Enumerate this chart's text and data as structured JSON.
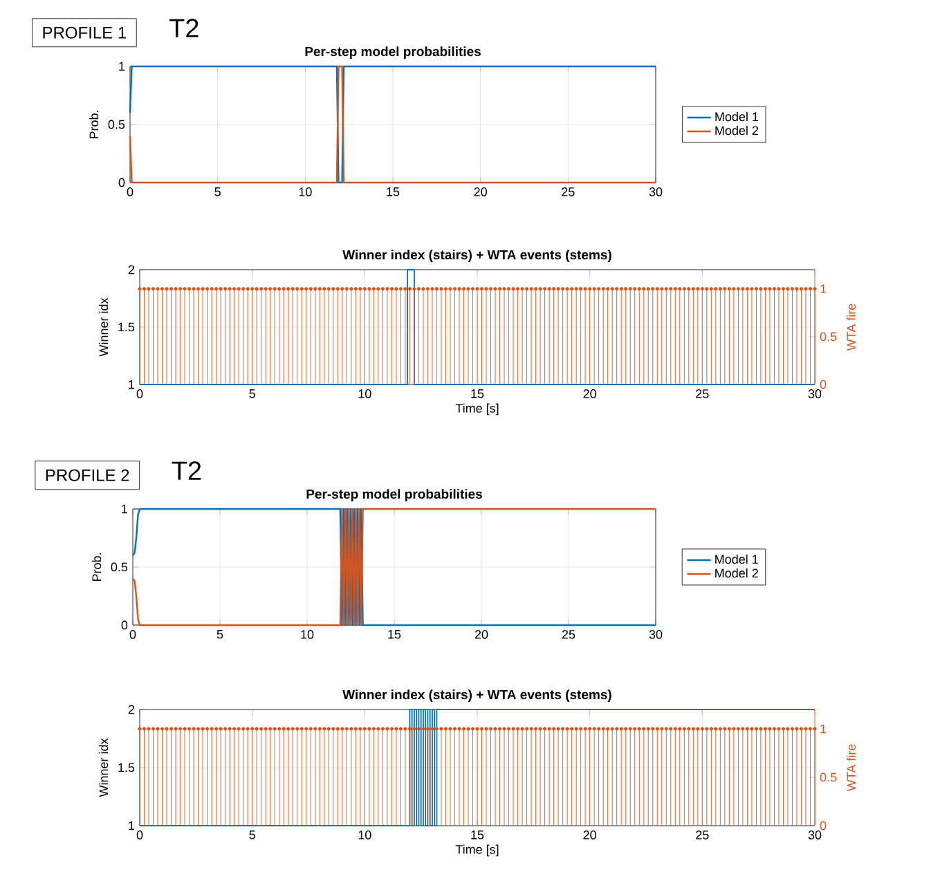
{
  "chart_data": [
    {
      "type": "line",
      "title": "Per-step model probabilities",
      "ylabel": "Prob.",
      "annotations": [
        "PROFILE 1",
        "T2"
      ],
      "xlim": [
        0,
        30
      ],
      "xticks": [
        0,
        5,
        10,
        15,
        20,
        25,
        30
      ],
      "ylim": [
        0,
        1
      ],
      "yticks": [
        0,
        0.5,
        1
      ],
      "grid": true,
      "legend": "right",
      "series": [
        {
          "name": "Model 1",
          "color": "#0072bd",
          "x": [
            0,
            0.1,
            11.8,
            11.9,
            12.1,
            12.2,
            30
          ],
          "values": [
            0.6,
            1,
            1,
            0,
            0,
            1,
            1
          ]
        },
        {
          "name": "Model 2",
          "color": "#d95319",
          "x": [
            0,
            0.1,
            11.8,
            11.9,
            12.1,
            12.2,
            30
          ],
          "values": [
            0.4,
            0,
            0,
            1,
            1,
            0,
            0
          ]
        }
      ]
    },
    {
      "type": "step",
      "title": "Winner index (stairs) + WTA events (stems)",
      "xlabel": "Time [s]",
      "ylabel": "Winner idx",
      "y2label": "WTA fire",
      "xlim": [
        0,
        30
      ],
      "xticks": [
        0,
        5,
        10,
        15,
        20,
        25,
        30
      ],
      "ylim": [
        1,
        2
      ],
      "yticks": [
        1,
        1.5,
        2
      ],
      "y2lim": [
        0,
        1.2
      ],
      "y2ticks": [
        0,
        0.5,
        1
      ],
      "grid": true,
      "series": [
        {
          "type": "step",
          "color": "#0072bd",
          "x": [
            0,
            11.9,
            12.2,
            30
          ],
          "values": [
            1,
            2,
            1,
            1
          ]
        },
        {
          "type": "lollipop",
          "axis": "y2",
          "marker": "circle",
          "color": "#d95319",
          "x": [
            0,
            0.2,
            0.4,
            0.6,
            0.8,
            1,
            1.2,
            1.4,
            1.6,
            1.8,
            2,
            2.2,
            2.4,
            2.6,
            2.8,
            3,
            3.2,
            3.4,
            3.6,
            3.8,
            4,
            4.2,
            4.4,
            4.6,
            4.8,
            5,
            5.2,
            5.4,
            5.6,
            5.8,
            6,
            6.2,
            6.4,
            6.6,
            6.8,
            7,
            7.2,
            7.4,
            7.6,
            7.8,
            8,
            8.2,
            8.4,
            8.6,
            8.8,
            9,
            9.2,
            9.4,
            9.6,
            9.8,
            10,
            10.2,
            10.4,
            10.6,
            10.8,
            11,
            11.2,
            11.4,
            11.6,
            11.8,
            12,
            12.2,
            12.4,
            12.6,
            12.8,
            13,
            13.2,
            13.4,
            13.6,
            13.8,
            14,
            14.2,
            14.4,
            14.6,
            14.8,
            15,
            15.2,
            15.4,
            15.6,
            15.8,
            16,
            16.2,
            16.4,
            16.6,
            16.8,
            17,
            17.2,
            17.4,
            17.6,
            17.8,
            18,
            18.2,
            18.4,
            18.6,
            18.8,
            19,
            19.2,
            19.4,
            19.6,
            19.8,
            20,
            20.2,
            20.4,
            20.6,
            20.8,
            21,
            21.2,
            21.4,
            21.6,
            21.8,
            22,
            22.2,
            22.4,
            22.6,
            22.8,
            23,
            23.2,
            23.4,
            23.6,
            23.8,
            24,
            24.2,
            24.4,
            24.6,
            24.8,
            25,
            25.2,
            25.4,
            25.6,
            25.8,
            26,
            26.2,
            26.4,
            26.6,
            26.8,
            27,
            27.2,
            27.4,
            27.6,
            27.8,
            28,
            28.2,
            28.4,
            28.6,
            28.8,
            29,
            29.2,
            29.4,
            29.6,
            29.8,
            30
          ],
          "values": [
            1,
            1,
            1,
            1,
            1,
            1,
            1,
            1,
            1,
            1,
            1,
            1,
            1,
            1,
            1,
            1,
            1,
            1,
            1,
            1,
            1,
            1,
            1,
            1,
            1,
            1,
            1,
            1,
            1,
            1,
            1,
            1,
            1,
            1,
            1,
            1,
            1,
            1,
            1,
            1,
            1,
            1,
            1,
            1,
            1,
            1,
            1,
            1,
            1,
            1,
            1,
            1,
            1,
            1,
            1,
            1,
            1,
            1,
            1,
            1,
            1,
            1,
            1,
            1,
            1,
            1,
            1,
            1,
            1,
            1,
            1,
            1,
            1,
            1,
            1,
            1,
            1,
            1,
            1,
            1,
            1,
            1,
            1,
            1,
            1,
            1,
            1,
            1,
            1,
            1,
            1,
            1,
            1,
            1,
            1,
            1,
            1,
            1,
            1,
            1,
            1,
            1,
            1,
            1,
            1,
            1,
            1,
            1,
            1,
            1,
            1,
            1,
            1,
            1,
            1,
            1,
            1,
            1,
            1,
            1,
            1,
            1,
            1,
            1,
            1,
            1,
            1,
            1,
            1,
            1,
            1,
            1,
            1,
            1,
            1,
            1,
            1,
            1,
            1,
            1,
            1,
            1,
            1,
            1,
            1,
            1,
            1,
            1,
            1,
            1,
            1
          ]
        }
      ]
    },
    {
      "type": "line",
      "title": "Per-step model probabilities",
      "ylabel": "Prob.",
      "annotations": [
        "PROFILE 2",
        "T2"
      ],
      "xlim": [
        0,
        30
      ],
      "xticks": [
        0,
        5,
        10,
        15,
        20,
        25,
        30
      ],
      "ylim": [
        0,
        1
      ],
      "yticks": [
        0,
        0.5,
        1
      ],
      "grid": true,
      "legend": "right",
      "series": [
        {
          "name": "Model 1",
          "color": "#0072bd",
          "x": [
            0,
            0.1,
            0.2,
            0.3,
            0.4,
            11.9,
            12,
            12.1,
            12.2,
            12.3,
            12.4,
            12.5,
            12.6,
            12.7,
            12.8,
            12.9,
            13,
            13.1,
            13.2,
            13.3,
            30
          ],
          "values": [
            0.6,
            0.62,
            0.75,
            0.95,
            1,
            1,
            0,
            1,
            0,
            1,
            0,
            1,
            0,
            1,
            0,
            1,
            0,
            1,
            0,
            0,
            0
          ]
        },
        {
          "name": "Model 2",
          "color": "#d95319",
          "x": [
            0,
            0.1,
            0.2,
            0.3,
            0.4,
            11.9,
            12,
            12.1,
            12.2,
            12.3,
            12.4,
            12.5,
            12.6,
            12.7,
            12.8,
            12.9,
            13,
            13.1,
            13.2,
            13.3,
            30
          ],
          "values": [
            0.4,
            0.38,
            0.25,
            0.05,
            0,
            0,
            1,
            0,
            1,
            0,
            1,
            0,
            1,
            0,
            1,
            0,
            1,
            0,
            1,
            1,
            1
          ]
        }
      ]
    },
    {
      "type": "step",
      "title": "Winner index (stairs) + WTA events (stems)",
      "xlabel": "Time [s]",
      "ylabel": "Winner idx",
      "y2label": "WTA fire",
      "xlim": [
        0,
        30
      ],
      "xticks": [
        0,
        5,
        10,
        15,
        20,
        25,
        30
      ],
      "ylim": [
        1,
        2
      ],
      "yticks": [
        1,
        1.5,
        2
      ],
      "y2lim": [
        0,
        1.2
      ],
      "y2ticks": [
        0,
        0.5,
        1
      ],
      "grid": true,
      "series": [
        {
          "type": "step",
          "color": "#0072bd",
          "x": [
            0,
            12,
            12.1,
            12.2,
            12.3,
            12.4,
            12.5,
            12.6,
            12.7,
            12.8,
            12.9,
            13,
            13.1,
            13.2,
            30
          ],
          "values": [
            1,
            2,
            1,
            2,
            1,
            2,
            1,
            2,
            1,
            2,
            1,
            2,
            1,
            2,
            2
          ]
        },
        {
          "type": "lollipop",
          "axis": "y2",
          "marker": "circle",
          "color": "#d95319",
          "x": [
            0,
            0.2,
            0.4,
            0.6,
            0.8,
            1,
            1.2,
            1.4,
            1.6,
            1.8,
            2,
            2.2,
            2.4,
            2.6,
            2.8,
            3,
            3.2,
            3.4,
            3.6,
            3.8,
            4,
            4.2,
            4.4,
            4.6,
            4.8,
            5,
            5.2,
            5.4,
            5.6,
            5.8,
            6,
            6.2,
            6.4,
            6.6,
            6.8,
            7,
            7.2,
            7.4,
            7.6,
            7.8,
            8,
            8.2,
            8.4,
            8.6,
            8.8,
            9,
            9.2,
            9.4,
            9.6,
            9.8,
            10,
            10.2,
            10.4,
            10.6,
            10.8,
            11,
            11.2,
            11.4,
            11.6,
            11.8,
            12,
            12.2,
            12.4,
            12.6,
            12.8,
            13,
            13.2,
            13.4,
            13.6,
            13.8,
            14,
            14.2,
            14.4,
            14.6,
            14.8,
            15,
            15.2,
            15.4,
            15.6,
            15.8,
            16,
            16.2,
            16.4,
            16.6,
            16.8,
            17,
            17.2,
            17.4,
            17.6,
            17.8,
            18,
            18.2,
            18.4,
            18.6,
            18.8,
            19,
            19.2,
            19.4,
            19.6,
            19.8,
            20,
            20.2,
            20.4,
            20.6,
            20.8,
            21,
            21.2,
            21.4,
            21.6,
            21.8,
            22,
            22.2,
            22.4,
            22.6,
            22.8,
            23,
            23.2,
            23.4,
            23.6,
            23.8,
            24,
            24.2,
            24.4,
            24.6,
            24.8,
            25,
            25.2,
            25.4,
            25.6,
            25.8,
            26,
            26.2,
            26.4,
            26.6,
            26.8,
            27,
            27.2,
            27.4,
            27.6,
            27.8,
            28,
            28.2,
            28.4,
            28.6,
            28.8,
            29,
            29.2,
            29.4,
            29.6,
            29.8,
            30
          ],
          "values": [
            1,
            1,
            1,
            1,
            1,
            1,
            1,
            1,
            1,
            1,
            1,
            1,
            1,
            1,
            1,
            1,
            1,
            1,
            1,
            1,
            1,
            1,
            1,
            1,
            1,
            1,
            1,
            1,
            1,
            1,
            1,
            1,
            1,
            1,
            1,
            1,
            1,
            1,
            1,
            1,
            1,
            1,
            1,
            1,
            1,
            1,
            1,
            1,
            1,
            1,
            1,
            1,
            1,
            1,
            1,
            1,
            1,
            1,
            1,
            1,
            1,
            1,
            1,
            1,
            1,
            1,
            1,
            1,
            1,
            1,
            1,
            1,
            1,
            1,
            1,
            1,
            1,
            1,
            1,
            1,
            1,
            1,
            1,
            1,
            1,
            1,
            1,
            1,
            1,
            1,
            1,
            1,
            1,
            1,
            1,
            1,
            1,
            1,
            1,
            1,
            1,
            1,
            1,
            1,
            1,
            1,
            1,
            1,
            1,
            1,
            1,
            1,
            1,
            1,
            1,
            1,
            1,
            1,
            1,
            1,
            1,
            1,
            1,
            1,
            1,
            1,
            1,
            1,
            1,
            1,
            1,
            1,
            1,
            1,
            1,
            1,
            1,
            1,
            1,
            1,
            1,
            1,
            1,
            1,
            1,
            1,
            1,
            1,
            1,
            1,
            1
          ]
        }
      ]
    }
  ]
}
